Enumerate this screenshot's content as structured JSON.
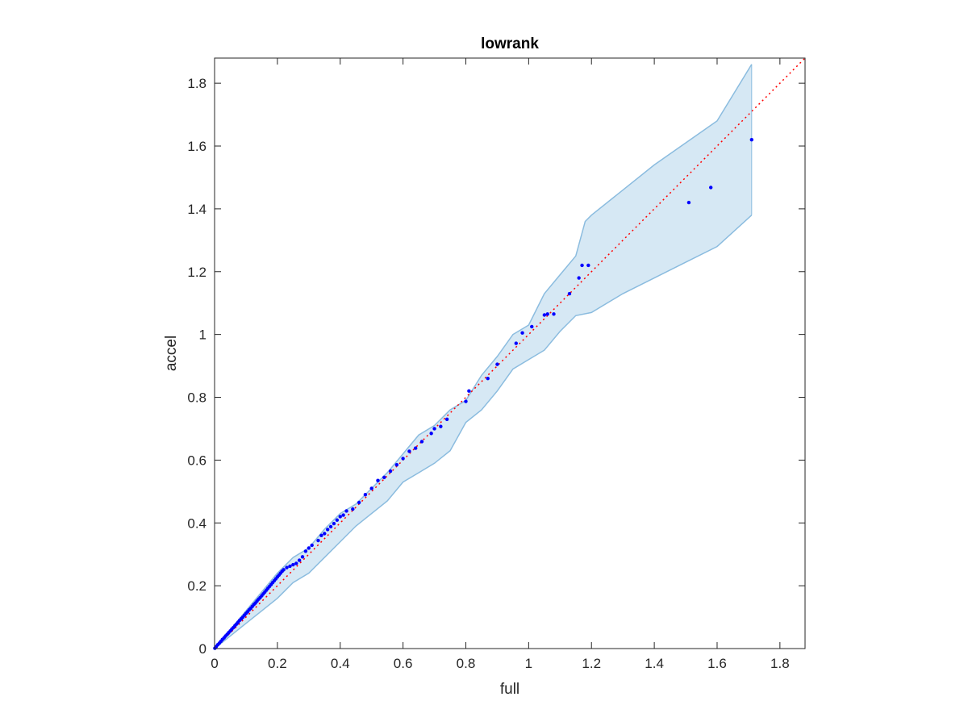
{
  "chart_data": {
    "type": "scatter",
    "title": "lowrank",
    "xlabel": "full",
    "ylabel": "accel",
    "xlim": [
      0,
      1.88
    ],
    "ylim": [
      0,
      1.88
    ],
    "xticks": [
      0,
      0.2,
      0.4,
      0.6,
      0.8,
      1,
      1.2,
      1.4,
      1.6,
      1.8
    ],
    "yticks": [
      0,
      0.2,
      0.4,
      0.6,
      0.8,
      1,
      1.2,
      1.4,
      1.6,
      1.8
    ],
    "xtick_labels": [
      "0",
      "0.2",
      "0.4",
      "0.6",
      "0.8",
      "1",
      "1.2",
      "1.4",
      "1.6",
      "1.8"
    ],
    "ytick_labels": [
      "0",
      "0.2",
      "0.4",
      "0.6",
      "0.8",
      "1",
      "1.2",
      "1.4",
      "1.6",
      "1.8"
    ],
    "grid": false,
    "band": {
      "upper": [
        [
          0,
          0
        ],
        [
          0.05,
          0.06
        ],
        [
          0.1,
          0.12
        ],
        [
          0.15,
          0.18
        ],
        [
          0.2,
          0.24
        ],
        [
          0.25,
          0.29
        ],
        [
          0.3,
          0.32
        ],
        [
          0.35,
          0.38
        ],
        [
          0.4,
          0.43
        ],
        [
          0.45,
          0.46
        ],
        [
          0.5,
          0.51
        ],
        [
          0.55,
          0.56
        ],
        [
          0.6,
          0.62
        ],
        [
          0.65,
          0.68
        ],
        [
          0.7,
          0.71
        ],
        [
          0.75,
          0.76
        ],
        [
          0.8,
          0.79
        ],
        [
          0.85,
          0.87
        ],
        [
          0.9,
          0.93
        ],
        [
          0.95,
          1.0
        ],
        [
          1.0,
          1.03
        ],
        [
          1.05,
          1.13
        ],
        [
          1.1,
          1.19
        ],
        [
          1.15,
          1.25
        ],
        [
          1.18,
          1.36
        ],
        [
          1.2,
          1.38
        ],
        [
          1.3,
          1.46
        ],
        [
          1.4,
          1.54
        ],
        [
          1.5,
          1.61
        ],
        [
          1.6,
          1.68
        ],
        [
          1.71,
          1.86
        ]
      ],
      "lower": [
        [
          0,
          0
        ],
        [
          0.05,
          0.04
        ],
        [
          0.1,
          0.08
        ],
        [
          0.15,
          0.12
        ],
        [
          0.2,
          0.16
        ],
        [
          0.25,
          0.21
        ],
        [
          0.3,
          0.24
        ],
        [
          0.35,
          0.29
        ],
        [
          0.4,
          0.34
        ],
        [
          0.45,
          0.39
        ],
        [
          0.5,
          0.43
        ],
        [
          0.55,
          0.47
        ],
        [
          0.6,
          0.53
        ],
        [
          0.65,
          0.56
        ],
        [
          0.7,
          0.59
        ],
        [
          0.75,
          0.63
        ],
        [
          0.8,
          0.72
        ],
        [
          0.85,
          0.76
        ],
        [
          0.9,
          0.82
        ],
        [
          0.95,
          0.89
        ],
        [
          1.0,
          0.92
        ],
        [
          1.05,
          0.95
        ],
        [
          1.1,
          1.01
        ],
        [
          1.15,
          1.06
        ],
        [
          1.2,
          1.07
        ],
        [
          1.3,
          1.13
        ],
        [
          1.4,
          1.18
        ],
        [
          1.5,
          1.23
        ],
        [
          1.6,
          1.28
        ],
        [
          1.71,
          1.38
        ]
      ]
    },
    "reference_line": [
      [
        0,
        0
      ],
      [
        1.88,
        1.88
      ]
    ],
    "series": [
      {
        "points": [
          [
            0.001,
            0.001
          ],
          [
            0.005,
            0.006
          ],
          [
            0.01,
            0.012
          ],
          [
            0.015,
            0.017
          ],
          [
            0.02,
            0.023
          ],
          [
            0.025,
            0.029
          ],
          [
            0.03,
            0.034
          ],
          [
            0.035,
            0.04
          ],
          [
            0.04,
            0.045
          ],
          [
            0.045,
            0.051
          ],
          [
            0.05,
            0.056
          ],
          [
            0.055,
            0.062
          ],
          [
            0.06,
            0.067
          ],
          [
            0.065,
            0.073
          ],
          [
            0.07,
            0.078
          ],
          [
            0.075,
            0.084
          ],
          [
            0.08,
            0.09
          ],
          [
            0.085,
            0.095
          ],
          [
            0.09,
            0.1
          ],
          [
            0.095,
            0.106
          ],
          [
            0.1,
            0.112
          ],
          [
            0.105,
            0.117
          ],
          [
            0.11,
            0.123
          ],
          [
            0.115,
            0.128
          ],
          [
            0.12,
            0.134
          ],
          [
            0.125,
            0.14
          ],
          [
            0.13,
            0.145
          ],
          [
            0.135,
            0.151
          ],
          [
            0.14,
            0.157
          ],
          [
            0.145,
            0.162
          ],
          [
            0.15,
            0.168
          ],
          [
            0.155,
            0.174
          ],
          [
            0.16,
            0.18
          ],
          [
            0.165,
            0.186
          ],
          [
            0.17,
            0.192
          ],
          [
            0.175,
            0.198
          ],
          [
            0.18,
            0.204
          ],
          [
            0.185,
            0.21
          ],
          [
            0.19,
            0.216
          ],
          [
            0.195,
            0.222
          ],
          [
            0.2,
            0.228
          ],
          [
            0.205,
            0.234
          ],
          [
            0.21,
            0.24
          ],
          [
            0.215,
            0.246
          ],
          [
            0.22,
            0.251
          ],
          [
            0.23,
            0.258
          ],
          [
            0.24,
            0.262
          ],
          [
            0.25,
            0.267
          ],
          [
            0.26,
            0.271
          ],
          [
            0.27,
            0.281
          ],
          [
            0.28,
            0.292
          ],
          [
            0.29,
            0.31
          ],
          [
            0.3,
            0.32
          ],
          [
            0.31,
            0.329
          ],
          [
            0.33,
            0.344
          ],
          [
            0.34,
            0.36
          ],
          [
            0.35,
            0.366
          ],
          [
            0.36,
            0.379
          ],
          [
            0.37,
            0.388
          ],
          [
            0.38,
            0.398
          ],
          [
            0.39,
            0.409
          ],
          [
            0.4,
            0.42
          ],
          [
            0.41,
            0.425
          ],
          [
            0.42,
            0.438
          ],
          [
            0.44,
            0.444
          ],
          [
            0.46,
            0.465
          ],
          [
            0.48,
            0.49
          ],
          [
            0.5,
            0.51
          ],
          [
            0.52,
            0.535
          ],
          [
            0.54,
            0.545
          ],
          [
            0.56,
            0.565
          ],
          [
            0.58,
            0.585
          ],
          [
            0.6,
            0.605
          ],
          [
            0.62,
            0.628
          ],
          [
            0.64,
            0.638
          ],
          [
            0.66,
            0.659
          ],
          [
            0.69,
            0.685
          ],
          [
            0.7,
            0.7
          ],
          [
            0.72,
            0.707
          ],
          [
            0.74,
            0.73
          ],
          [
            0.8,
            0.787
          ],
          [
            0.81,
            0.82
          ],
          [
            0.87,
            0.86
          ],
          [
            0.9,
            0.905
          ],
          [
            0.96,
            0.972
          ],
          [
            0.98,
            1.005
          ],
          [
            1.01,
            1.025
          ],
          [
            1.05,
            1.062
          ],
          [
            1.06,
            1.065
          ],
          [
            1.08,
            1.065
          ],
          [
            1.13,
            1.13
          ],
          [
            1.16,
            1.18
          ],
          [
            1.17,
            1.22
          ],
          [
            1.19,
            1.22
          ],
          [
            1.51,
            1.42
          ],
          [
            1.58,
            1.468
          ],
          [
            1.71,
            1.62
          ]
        ]
      }
    ],
    "colors": {
      "band_fill": "#d6e8f4",
      "band_edge": "#8bbcdf",
      "points": "#0000ff",
      "reference": "#ff0000",
      "axes": "#262626"
    }
  }
}
